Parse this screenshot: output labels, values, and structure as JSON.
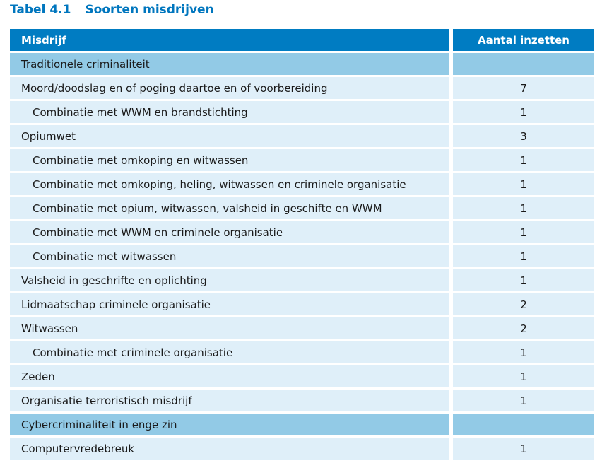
{
  "title": {
    "label": "Tabel 4.1",
    "name": "Soorten misdrijven"
  },
  "table": {
    "columns": {
      "misdrijf": "Misdrijf",
      "aantal": "Aantal inzetten"
    },
    "rows": [
      {
        "label": "Traditionele criminaliteit",
        "value": "",
        "type": "section"
      },
      {
        "label": "Moord/doodslag en of poging daartoe en of voorbereiding",
        "value": "7",
        "type": "main"
      },
      {
        "label": "Combinatie met WWM en brandstichting",
        "value": "1",
        "type": "sub"
      },
      {
        "label": "Opiumwet",
        "value": "3",
        "type": "main"
      },
      {
        "label": "Combinatie met omkoping en witwassen",
        "value": "1",
        "type": "sub"
      },
      {
        "label": "Combinatie met omkoping, heling, witwassen en criminele organisatie",
        "value": "1",
        "type": "sub"
      },
      {
        "label": "Combinatie met opium, witwassen, valsheid in geschifte en WWM",
        "value": "1",
        "type": "sub"
      },
      {
        "label": "Combinatie met WWM en criminele organisatie",
        "value": "1",
        "type": "sub"
      },
      {
        "label": "Combinatie met witwassen",
        "value": "1",
        "type": "sub"
      },
      {
        "label": "Valsheid in geschrifte en oplichting",
        "value": "1",
        "type": "main"
      },
      {
        "label": "Lidmaatschap criminele organisatie",
        "value": "2",
        "type": "main"
      },
      {
        "label": "Witwassen",
        "value": "2",
        "type": "main"
      },
      {
        "label": "Combinatie met criminele organisatie",
        "value": "1",
        "type": "sub"
      },
      {
        "label": "Zeden",
        "value": "1",
        "type": "main"
      },
      {
        "label": "Organisatie terroristisch misdrijf",
        "value": "1",
        "type": "main"
      },
      {
        "label": "Cybercriminaliteit in enge zin",
        "value": "",
        "type": "section"
      },
      {
        "label": "Computervredebreuk",
        "value": "1",
        "type": "main"
      }
    ],
    "colors": {
      "title_text": "#0076be",
      "header_bg": "#007cc2",
      "header_text": "#ffffff",
      "section_row_bg": "#92cae6",
      "data_row_bg": "#dfeff9",
      "body_text": "#1a1a1a",
      "gap": "#ffffff"
    }
  }
}
